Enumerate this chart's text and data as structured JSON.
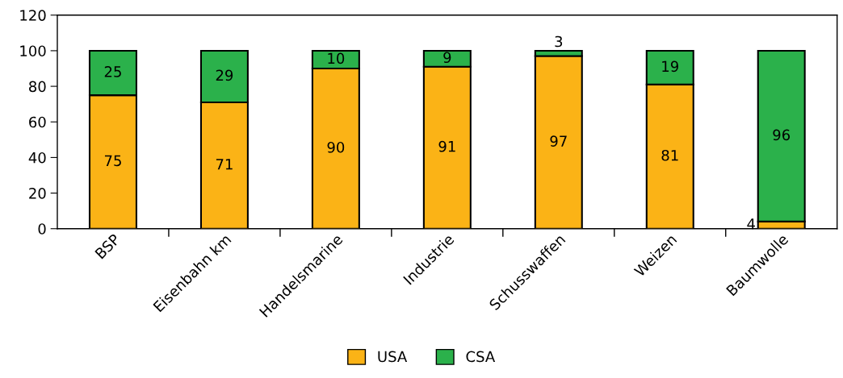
{
  "chart_data": {
    "type": "bar",
    "stacked": true,
    "categories": [
      "BSP",
      "Eisenbahn km",
      "Handelsmarine",
      "Industrie",
      "Schusswaffen",
      "Weizen",
      "Baumwolle"
    ],
    "series": [
      {
        "name": "USA",
        "color": "#fbb316",
        "values": [
          75,
          71,
          90,
          91,
          97,
          81,
          4
        ]
      },
      {
        "name": "CSA",
        "color": "#2bb14b",
        "values": [
          25,
          29,
          10,
          9,
          3,
          19,
          96
        ]
      }
    ],
    "ylim": [
      0,
      120
    ],
    "yticks": [
      0,
      20,
      40,
      60,
      80,
      100,
      120
    ],
    "grid": false,
    "legend": "bottom",
    "data_labels": true
  }
}
